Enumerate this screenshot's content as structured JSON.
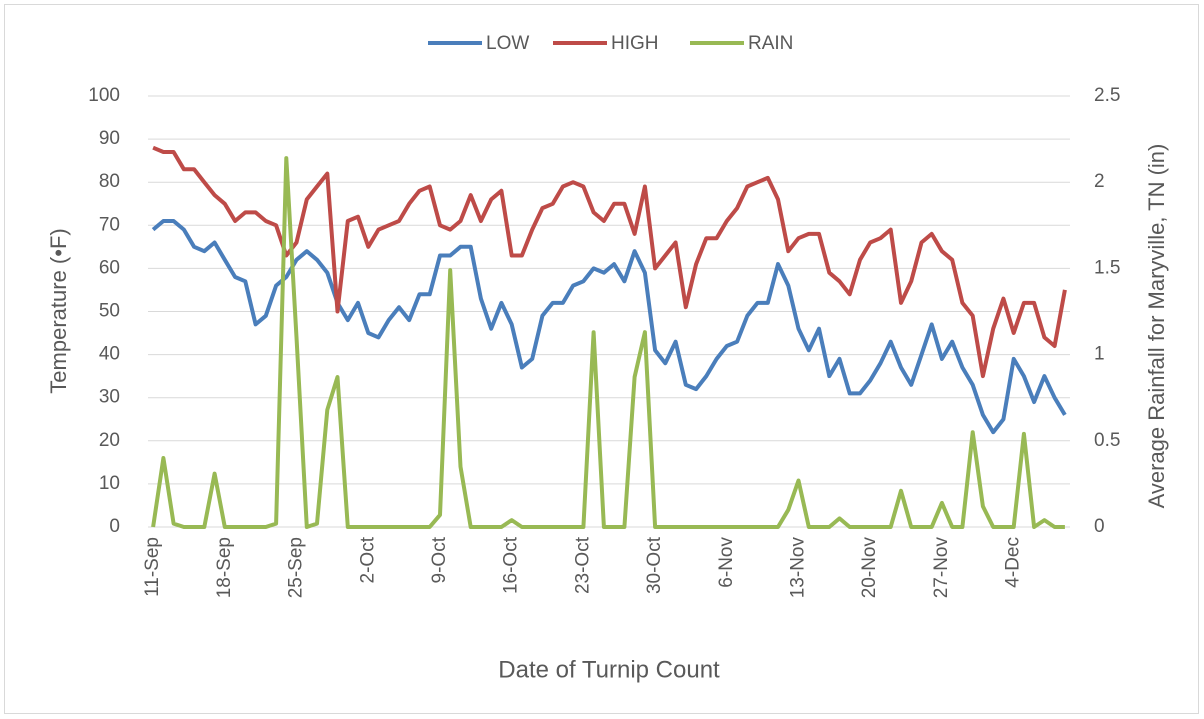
{
  "chart_data": {
    "type": "line",
    "x_label": "Date of Turnip Count",
    "y_label": "Temperature (•F)",
    "y2_label": "Average Rainfall for Maryville, TN (in)",
    "categories": [
      "11-Sep",
      null,
      null,
      null,
      null,
      null,
      null,
      "18-Sep",
      null,
      null,
      null,
      null,
      null,
      null,
      "25-Sep",
      null,
      null,
      null,
      null,
      null,
      null,
      "2-Oct",
      null,
      null,
      null,
      null,
      null,
      null,
      "9-Oct",
      null,
      null,
      null,
      null,
      null,
      null,
      "16-Oct",
      null,
      null,
      null,
      null,
      null,
      null,
      "23-Oct",
      null,
      null,
      null,
      null,
      null,
      null,
      "30-Oct",
      null,
      null,
      null,
      null,
      null,
      null,
      "6-Nov",
      null,
      null,
      null,
      null,
      null,
      null,
      "13-Nov",
      null,
      null,
      null,
      null,
      null,
      null,
      "20-Nov",
      null,
      null,
      null,
      null,
      null,
      null,
      "27-Nov",
      null,
      null,
      null,
      null,
      null,
      null,
      "4-Dec",
      null,
      null,
      null,
      null,
      null
    ],
    "series": [
      {
        "name": "LOW",
        "color": "#4a7ebb",
        "values": [
          69,
          71,
          71,
          69,
          65,
          64,
          66,
          62,
          58,
          57,
          47,
          49,
          56,
          58,
          62,
          64,
          62,
          59,
          52,
          48,
          52,
          45,
          44,
          48,
          51,
          48,
          54,
          54,
          63,
          63,
          65,
          65,
          53,
          46,
          52,
          47,
          37,
          39,
          49,
          52,
          52,
          56,
          57,
          60,
          59,
          61,
          57,
          64,
          59,
          41,
          38,
          43,
          33,
          32,
          35,
          39,
          42,
          43,
          49,
          52,
          52,
          61,
          56,
          46,
          41,
          46,
          35,
          39,
          31,
          31,
          34,
          38,
          43,
          37,
          33,
          40,
          47,
          39,
          43,
          37,
          33,
          26,
          22,
          25,
          39,
          35,
          29,
          35,
          30,
          26
        ]
      },
      {
        "name": "HIGH",
        "color": "#be4b48",
        "values": [
          88,
          87,
          87,
          83,
          83,
          80,
          77,
          75,
          71,
          73,
          73,
          71,
          70,
          63,
          66,
          76,
          79,
          82,
          50,
          71,
          72,
          65,
          69,
          70,
          71,
          75,
          78,
          79,
          70,
          69,
          71,
          77,
          71,
          76,
          78,
          63,
          63,
          69,
          74,
          75,
          79,
          80,
          79,
          73,
          71,
          75,
          75,
          68,
          79,
          60,
          63,
          66,
          51,
          61,
          67,
          67,
          71,
          74,
          79,
          80,
          81,
          76,
          64,
          67,
          68,
          68,
          59,
          57,
          54,
          62,
          66,
          67,
          69,
          52,
          57,
          66,
          68,
          64,
          62,
          52,
          49,
          35,
          46,
          53,
          45,
          52,
          52,
          44,
          42,
          55
        ]
      },
      {
        "name": "RAIN",
        "color": "#98b954",
        "axis": "y2",
        "values": [
          0,
          0.4,
          0.02,
          0,
          0,
          0,
          0.31,
          0,
          0,
          0,
          0,
          0,
          0.02,
          2.14,
          1.1,
          0,
          0.02,
          0.68,
          0.87,
          0,
          0,
          0,
          0,
          0,
          0,
          0,
          0,
          0,
          0.07,
          1.49,
          0.35,
          0,
          0,
          0,
          0,
          0.04,
          0,
          0,
          0,
          0,
          0,
          0,
          0,
          1.13,
          0,
          0,
          0,
          0.87,
          1.13,
          0,
          0,
          0,
          0,
          0,
          0,
          0,
          0,
          0,
          0,
          0,
          0,
          0,
          0.1,
          0.27,
          0,
          0,
          0,
          0.05,
          0,
          0,
          0,
          0,
          0,
          0.21,
          0,
          0,
          0,
          0.14,
          0,
          0,
          0.55,
          0.12,
          0,
          0,
          0,
          0.54,
          0,
          0.04,
          0,
          0
        ]
      }
    ],
    "ylim": [
      0,
      100
    ],
    "yticks": [
      0,
      10,
      20,
      30,
      40,
      50,
      60,
      70,
      80,
      90,
      100
    ],
    "y2lim": [
      0,
      2.5
    ],
    "y2ticks": [
      0,
      0.5,
      1,
      1.5,
      2,
      2.5
    ],
    "grid": true,
    "legend": "top"
  }
}
